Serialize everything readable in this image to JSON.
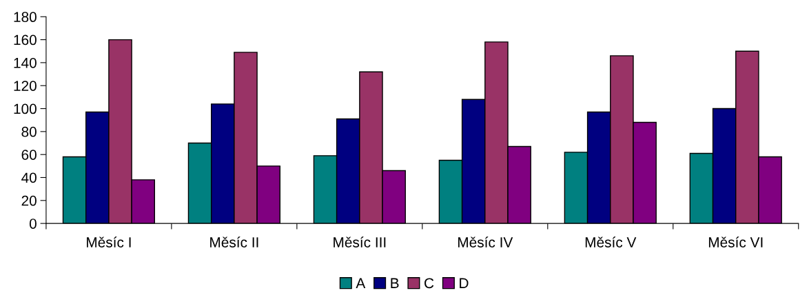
{
  "chart_data": {
    "type": "bar",
    "categories": [
      "Měsíc I",
      "Měsíc II",
      "Měsíc III",
      "Měsíc IV",
      "Měsíc V",
      "Měsíc VI"
    ],
    "series": [
      {
        "name": "A",
        "color": "#008080",
        "values": [
          58,
          70,
          59,
          55,
          62,
          61
        ]
      },
      {
        "name": "B",
        "color": "#000080",
        "values": [
          97,
          104,
          91,
          108,
          97,
          100
        ]
      },
      {
        "name": "C",
        "color": "#993366",
        "values": [
          160,
          149,
          132,
          158,
          146,
          150
        ]
      },
      {
        "name": "D",
        "color": "#800080",
        "values": [
          38,
          50,
          46,
          67,
          88,
          58
        ]
      }
    ],
    "ylim": [
      0,
      180
    ],
    "yticks": [
      0,
      20,
      40,
      60,
      80,
      100,
      120,
      140,
      160,
      180
    ],
    "grid": false,
    "legend": "bottom"
  }
}
